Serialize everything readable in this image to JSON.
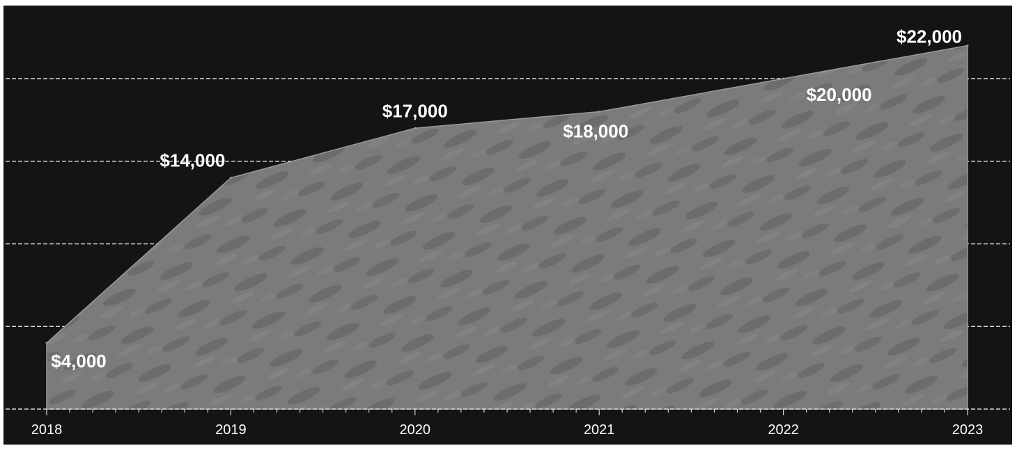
{
  "chart_data": {
    "type": "area",
    "title": "",
    "xlabel": "",
    "ylabel": "",
    "x": [
      "2018",
      "2019",
      "2020",
      "2021",
      "2022",
      "2023"
    ],
    "y": [
      4000,
      14000,
      17000,
      18000,
      20000,
      22000
    ],
    "data_labels": [
      "$4,000",
      "$14,000",
      "$17,000",
      "$18,000",
      "$20,000",
      "$22,000"
    ],
    "ylim": [
      0,
      25000
    ],
    "y_gridlines": [
      5000,
      10000,
      15000,
      20000
    ],
    "grid": true,
    "legend": "none",
    "colors": {
      "background": "#141414",
      "area_fill": "#7b7b7b",
      "area_texture": "#4a4a4a",
      "gridline": "#d8d8d8",
      "text": "#ffffff"
    }
  }
}
